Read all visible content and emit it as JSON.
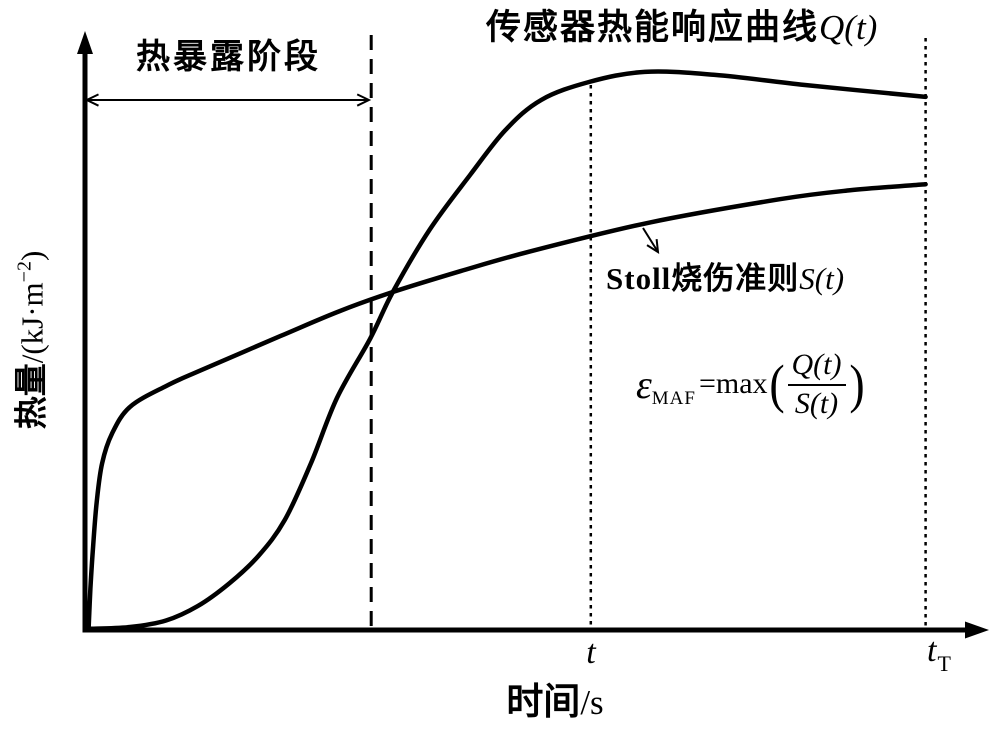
{
  "figure": {
    "title_cn": "传感器热能响应曲线",
    "title_math": "Q(t)",
    "exposure_label": "热暴露阶段",
    "stoll_label_prefix": "Stoll烧伤准则",
    "stoll_label_math": "S(t)",
    "formula": {
      "epsilon": "ε",
      "subscript": "MAF",
      "equals_max": "=max",
      "open_paren": "(",
      "numerator": "Q(t)",
      "denominator": "S(t)",
      "close_paren": ")"
    },
    "y_axis_label_cjk": "热量",
    "y_axis_label_unit_prefix": "/(kJ·m",
    "y_axis_label_sup": "−2",
    "y_axis_label_close": ")",
    "x_axis_label_cn": "时间",
    "x_axis_label_unit": "/s",
    "tick_t": "t",
    "tick_tT_base": "t",
    "tick_tT_sub": "T"
  },
  "chart_data": {
    "type": "line",
    "title": "传感器热能响应曲线Q(t)与Stoll烧伤准则S(t)",
    "xlabel": "时间/s",
    "ylabel": "热量/(kJ·m−2)",
    "axes_numeric": false,
    "units_note": "schematic curves; coordinates are normalized fractions of axis length (x: 0=origin, 1=x-arrow tip; y: 0=baseline, 1=y-arrow tip)",
    "grid": false,
    "legend": "labels annotated on plot",
    "colors": {
      "line": "#000000",
      "background": "#ffffff"
    },
    "layout": {
      "x0": 85,
      "y0": 630,
      "x1": 985,
      "y_top": 35,
      "line_width": 4.5
    },
    "series": [
      {
        "name": "Q(t)",
        "label": "传感器热能响应曲线Q(t)",
        "style": "solid",
        "points": [
          [
            0.004,
            0.002
          ],
          [
            0.05,
            0.005
          ],
          [
            0.09,
            0.016
          ],
          [
            0.125,
            0.04
          ],
          [
            0.16,
            0.078
          ],
          [
            0.193,
            0.125
          ],
          [
            0.222,
            0.185
          ],
          [
            0.251,
            0.28
          ],
          [
            0.28,
            0.39
          ],
          [
            0.317,
            0.49
          ],
          [
            0.342,
            0.568
          ],
          [
            0.383,
            0.673
          ],
          [
            0.428,
            0.765
          ],
          [
            0.467,
            0.84
          ],
          [
            0.507,
            0.891
          ],
          [
            0.56,
            0.921
          ],
          [
            0.622,
            0.938
          ],
          [
            0.7,
            0.933
          ],
          [
            0.8,
            0.916
          ],
          [
            0.934,
            0.896
          ]
        ]
      },
      {
        "name": "S(t)",
        "label": "Stoll烧伤准则S(t)",
        "style": "solid",
        "points": [
          [
            0.004,
            0.002
          ],
          [
            0.006,
            0.07
          ],
          [
            0.009,
            0.14
          ],
          [
            0.013,
            0.215
          ],
          [
            0.019,
            0.28
          ],
          [
            0.03,
            0.33
          ],
          [
            0.05,
            0.375
          ],
          [
            0.09,
            0.41
          ],
          [
            0.128,
            0.436
          ],
          [
            0.217,
            0.494
          ],
          [
            0.283,
            0.536
          ],
          [
            0.342,
            0.568
          ],
          [
            0.417,
            0.603
          ],
          [
            0.494,
            0.636
          ],
          [
            0.628,
            0.685
          ],
          [
            0.772,
            0.724
          ],
          [
            0.85,
            0.739
          ],
          [
            0.934,
            0.749
          ]
        ]
      }
    ],
    "vlines": [
      {
        "id": "exposure-end",
        "x": 0.318,
        "top": 1.0,
        "dash": "15,9",
        "width": 3
      },
      {
        "id": "t",
        "x": 0.562,
        "top": 0.916,
        "dash": "3.5,4.5",
        "width": 2.5
      },
      {
        "id": "t-total",
        "x": 0.934,
        "top": 0.995,
        "dash": "3.5,4.5",
        "width": 2.5
      }
    ],
    "annotations": {
      "exposure_arrow": {
        "x_from": 0.002,
        "x_to": 0.3155,
        "y": 0.8907
      },
      "stoll_arrow": {
        "x1": 643,
        "y1": 228,
        "x2": 658,
        "y2": 252
      }
    }
  }
}
